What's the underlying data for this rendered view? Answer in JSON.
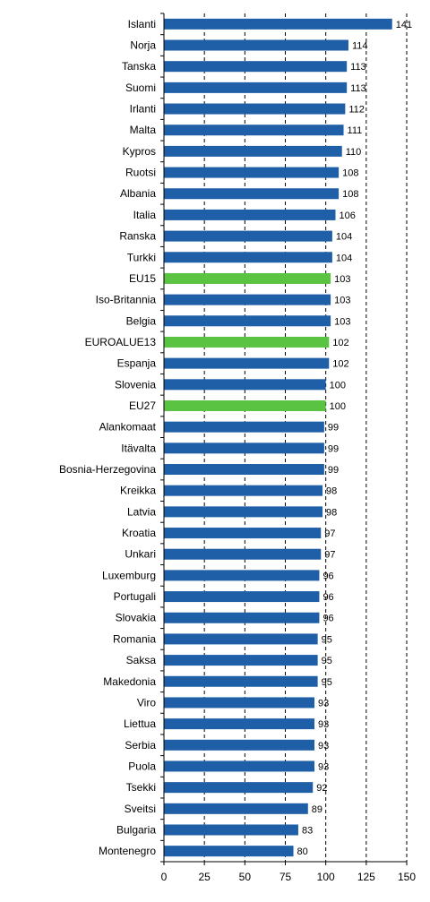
{
  "chart_data": {
    "type": "bar",
    "orientation": "horizontal",
    "categories": [
      "Islanti",
      "Norja",
      "Tanska",
      "Suomi",
      "Irlanti",
      "Malta",
      "Kypros",
      "Ruotsi",
      "Albania",
      "Italia",
      "Ranska",
      "Turkki",
      "EU15",
      "Iso-Britannia",
      "Belgia",
      "EUROALUE13",
      "Espanja",
      "Slovenia",
      "EU27",
      "Alankomaat",
      "Itävalta",
      "Bosnia-Herzegovina",
      "Kreikka",
      "Latvia",
      "Kroatia",
      "Unkari",
      "Luxemburg",
      "Portugali",
      "Slovakia",
      "Romania",
      "Saksa",
      "Makedonia",
      "Viro",
      "Liettua",
      "Serbia",
      "Puola",
      "Tsekki",
      "Sveitsi",
      "Bulgaria",
      "Montenegro"
    ],
    "values": [
      141,
      114,
      113,
      113,
      112,
      111,
      110,
      108,
      108,
      106,
      104,
      104,
      103,
      103,
      103,
      102,
      102,
      100,
      100,
      99,
      99,
      99,
      98,
      98,
      97,
      97,
      96,
      96,
      96,
      95,
      95,
      95,
      93,
      93,
      93,
      93,
      92,
      89,
      83,
      80
    ],
    "highlighted": [
      "EU15",
      "EUROALUE13",
      "EU27"
    ],
    "bar_color": "#1f5fa8",
    "highlight_color": "#5ac342",
    "title": "",
    "xlabel": "",
    "ylabel": "",
    "xlim": [
      0,
      150
    ],
    "xticks": [
      0,
      25,
      50,
      75,
      100,
      125,
      150
    ],
    "grid": "vertical dashed lines",
    "legend": "none"
  }
}
